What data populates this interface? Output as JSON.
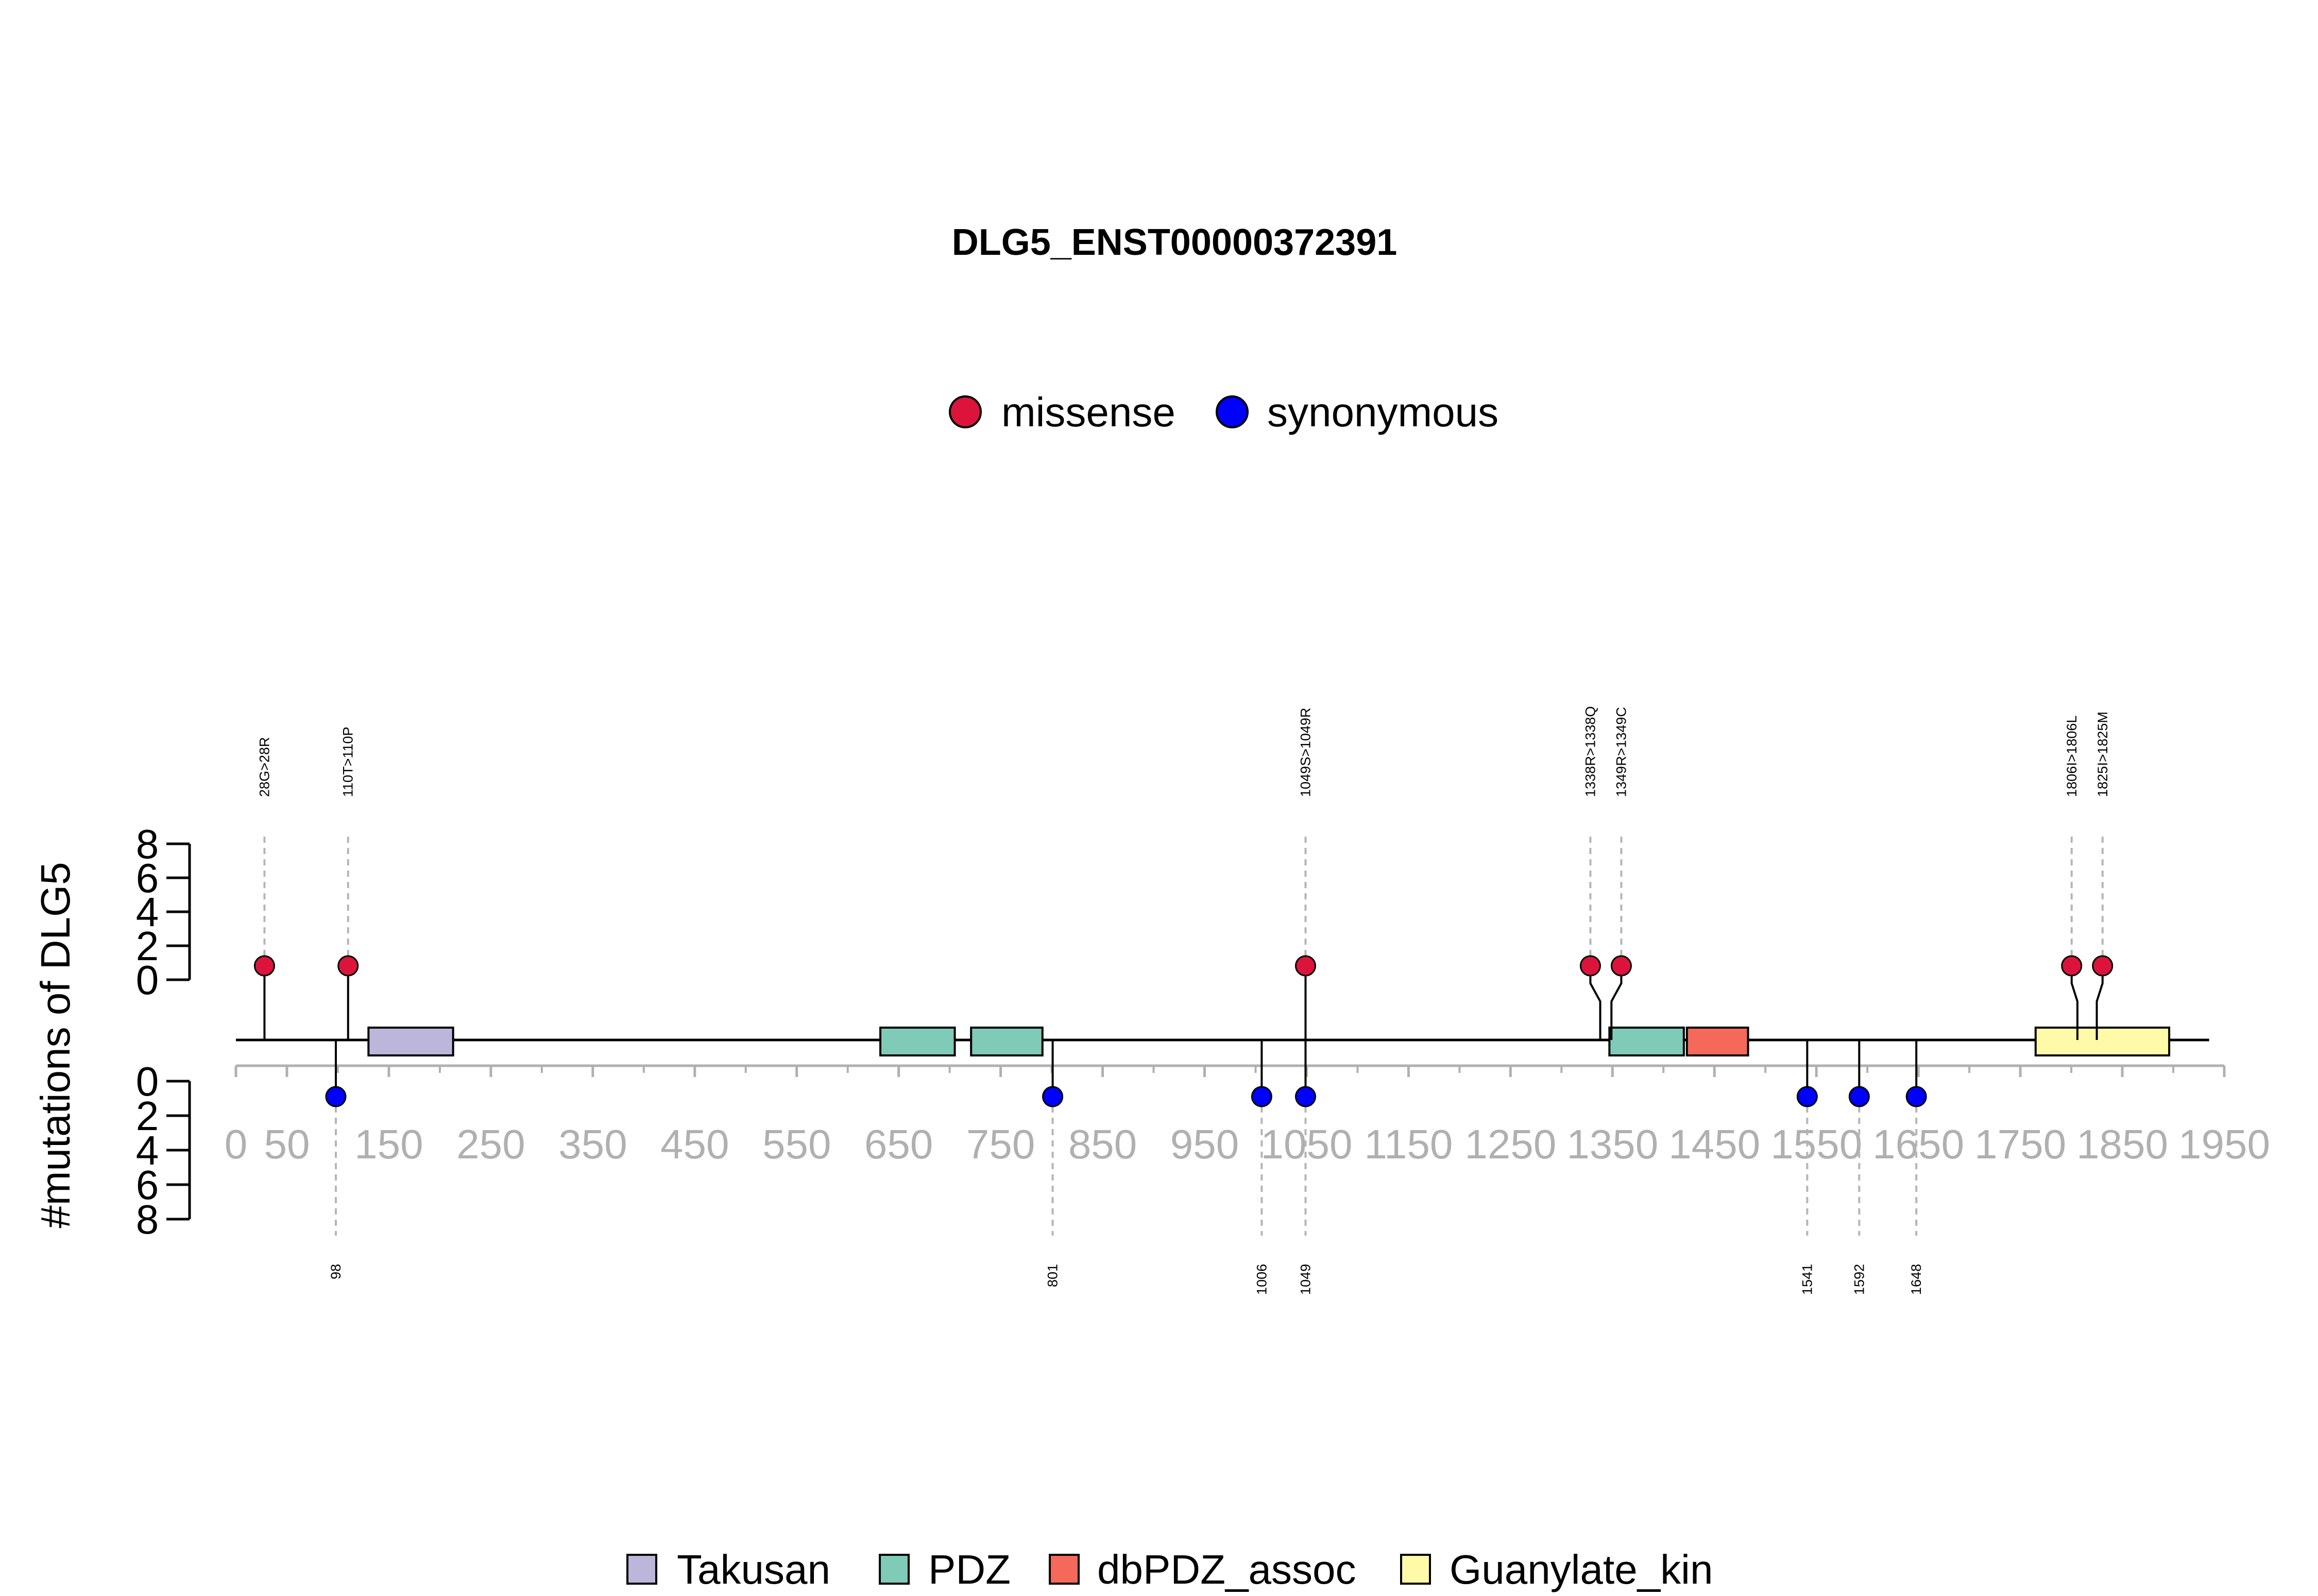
{
  "chart_data": {
    "type": "lollipop",
    "title": "DLG5_ENST00000372391",
    "ylabel": "#mutations of DLG5",
    "protein_length": 1919,
    "xlim": [
      0,
      1950
    ],
    "x_ticks": [
      0,
      50,
      150,
      250,
      350,
      450,
      550,
      650,
      750,
      850,
      950,
      1050,
      1150,
      1250,
      1350,
      1450,
      1550,
      1650,
      1750,
      1850,
      1950
    ],
    "y_ticks": [
      0,
      2,
      4,
      6,
      8
    ],
    "ylim": [
      0,
      8
    ],
    "mutation_legend": [
      {
        "name": "missense",
        "color": "#dc143c"
      },
      {
        "name": "synonymous",
        "color": "#0000ff"
      }
    ],
    "domain_legend": [
      {
        "name": "Takusan",
        "color": "#bcb6db"
      },
      {
        "name": "PDZ",
        "color": "#7fcbb8"
      },
      {
        "name": "dbPDZ_assoc",
        "color": "#f4695a"
      },
      {
        "name": "Guanylate_kin",
        "color": "#fffaa8"
      }
    ],
    "domains": [
      {
        "name": "Takusan",
        "start": 130,
        "end": 213,
        "color": "#bcb6db"
      },
      {
        "name": "PDZ",
        "start": 632,
        "end": 705,
        "color": "#7fcbb8"
      },
      {
        "name": "PDZ",
        "start": 721,
        "end": 791,
        "color": "#7fcbb8"
      },
      {
        "name": "PDZ",
        "start": 1347,
        "end": 1420,
        "color": "#7fcbb8"
      },
      {
        "name": "dbPDZ_assoc",
        "start": 1423,
        "end": 1483,
        "color": "#f4695a"
      },
      {
        "name": "Guanylate_kin",
        "start": 1765,
        "end": 1896,
        "color": "#fffaa8"
      }
    ],
    "mutations_top": [
      {
        "position": 28,
        "label": "28G>28R",
        "count": 1,
        "type": "missense"
      },
      {
        "position": 110,
        "label": "110T>110P",
        "count": 1,
        "type": "missense"
      },
      {
        "position": 1049,
        "label": "1049S>1049R",
        "count": 1,
        "type": "missense"
      },
      {
        "position": 1338,
        "label": "1338R>1338Q",
        "count": 1,
        "type": "missense"
      },
      {
        "position": 1349,
        "label": "1349R>1349C",
        "count": 1,
        "type": "missense"
      },
      {
        "position": 1806,
        "label": "1806I>1806L",
        "count": 1,
        "type": "missense"
      },
      {
        "position": 1825,
        "label": "1825I>1825M",
        "count": 1,
        "type": "missense"
      }
    ],
    "mutations_bottom": [
      {
        "position": 98,
        "label": "98",
        "count": 1,
        "type": "synonymous"
      },
      {
        "position": 801,
        "label": "801",
        "count": 1,
        "type": "synonymous"
      },
      {
        "position": 1006,
        "label": "1006",
        "count": 1,
        "type": "synonymous"
      },
      {
        "position": 1049,
        "label": "1049",
        "count": 1,
        "type": "synonymous"
      },
      {
        "position": 1541,
        "label": "1541",
        "count": 1,
        "type": "synonymous"
      },
      {
        "position": 1592,
        "label": "1592",
        "count": 1,
        "type": "synonymous"
      },
      {
        "position": 1648,
        "label": "1648",
        "count": 1,
        "type": "synonymous"
      }
    ]
  }
}
